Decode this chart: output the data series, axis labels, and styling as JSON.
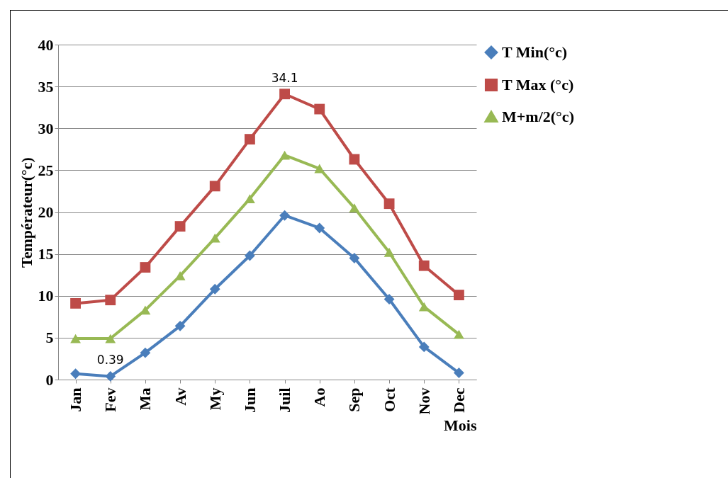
{
  "chart_data": {
    "type": "line",
    "xlabel": "Mois",
    "ylabel": "Températeur(°c)",
    "categories": [
      "Jan",
      "Fev",
      "Ma",
      "Av",
      "My",
      "Jun",
      "Juil",
      "Ao",
      "Sep",
      "Oct",
      "Nov",
      "Dec"
    ],
    "series": [
      {
        "name": "T Min(°c)",
        "color": "#4a7ebb",
        "marker": "diamond",
        "values": [
          0.7,
          0.39,
          3.2,
          6.4,
          10.8,
          14.8,
          19.6,
          18.1,
          14.5,
          9.6,
          3.9,
          0.8
        ],
        "value_labels": [
          null,
          "0.39",
          null,
          null,
          null,
          null,
          null,
          null,
          null,
          null,
          null,
          null
        ]
      },
      {
        "name": "T Max (°c)",
        "color": "#be4b48",
        "marker": "square",
        "values": [
          9.1,
          9.5,
          13.4,
          18.3,
          23.1,
          28.7,
          34.1,
          32.3,
          26.3,
          21.0,
          13.6,
          10.1
        ],
        "value_labels": [
          null,
          null,
          null,
          null,
          null,
          null,
          "34.1",
          null,
          null,
          null,
          null,
          null
        ]
      },
      {
        "name": "M+m/2(°c)",
        "color": "#98b954",
        "marker": "triangle",
        "values": [
          4.9,
          4.9,
          8.3,
          12.4,
          16.9,
          21.6,
          26.8,
          25.2,
          20.5,
          15.2,
          8.7,
          5.4
        ]
      }
    ],
    "ylim": [
      0,
      40
    ],
    "yticks": [
      0,
      5,
      10,
      15,
      20,
      25,
      30,
      35,
      40
    ],
    "grid": "y",
    "legend": "right",
    "line_style": "solid"
  }
}
